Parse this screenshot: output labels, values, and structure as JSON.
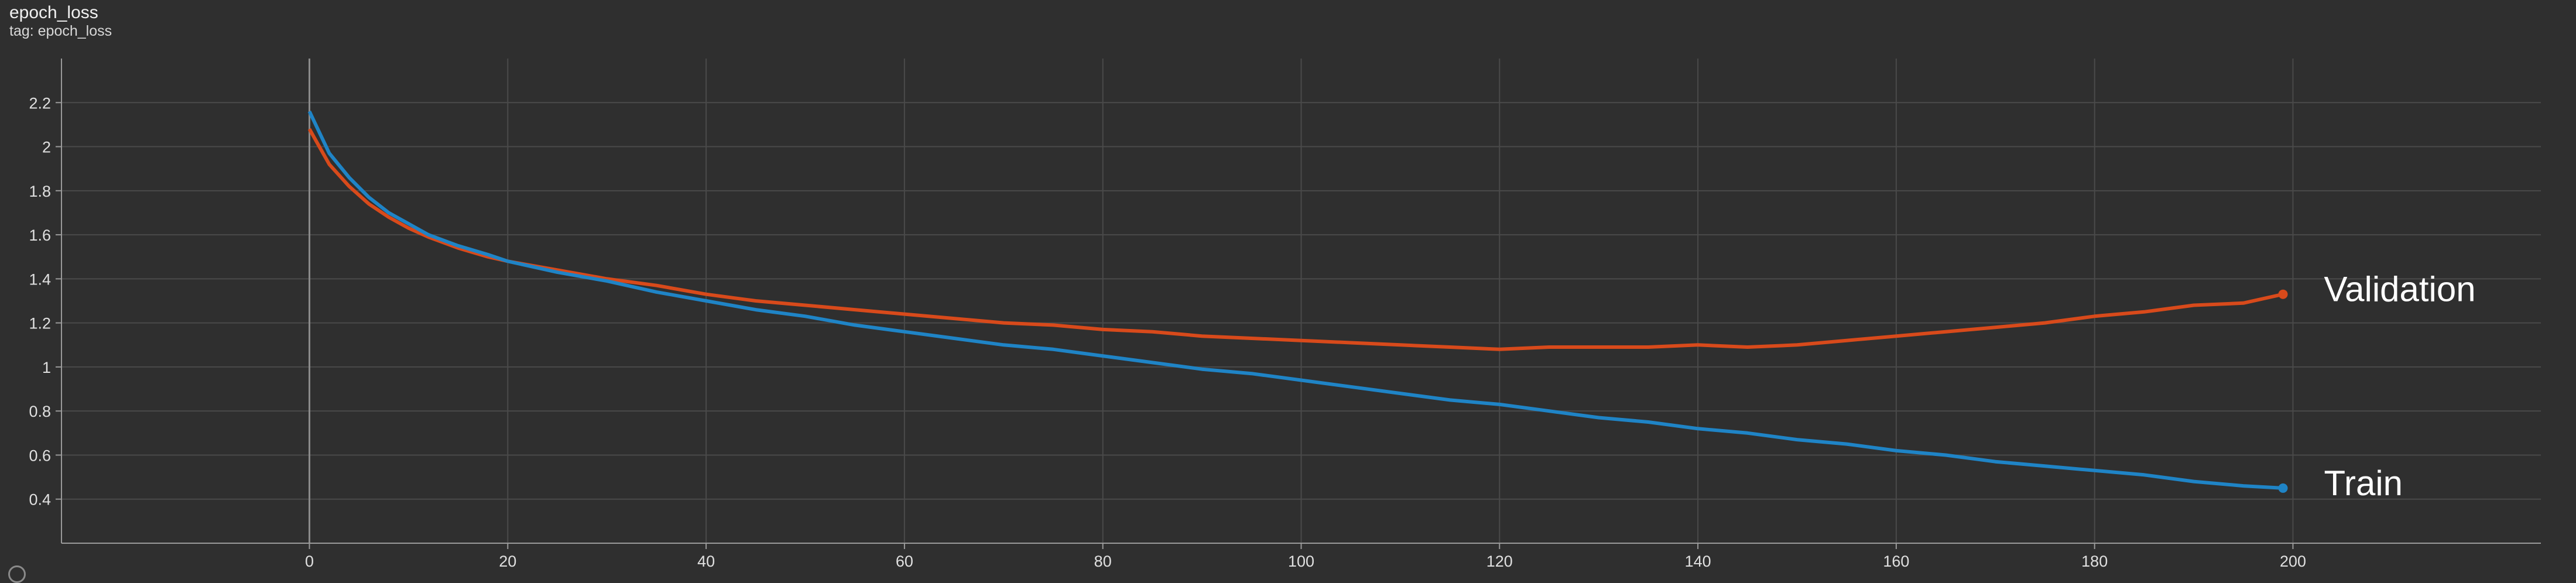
{
  "header": {
    "title": "epoch_loss",
    "subtitle": "tag: epoch_loss"
  },
  "chart_data": {
    "type": "line",
    "title": "epoch_loss",
    "subtitle": "tag: epoch_loss",
    "xlabel": "",
    "ylabel": "",
    "xlim": [
      -25,
      225
    ],
    "ylim": [
      0.2,
      2.4
    ],
    "x_ticks": [
      0,
      20,
      40,
      60,
      80,
      100,
      120,
      140,
      160,
      180,
      200
    ],
    "y_ticks": [
      0.4,
      0.6,
      0.8,
      1,
      1.2,
      1.4,
      1.6,
      1.8,
      2,
      2.2
    ],
    "grid": true,
    "legend": "inline-right",
    "series": [
      {
        "name": "Validation",
        "color": "#d84a1b",
        "x": [
          0,
          2,
          4,
          6,
          8,
          10,
          12,
          15,
          18,
          20,
          25,
          30,
          35,
          40,
          45,
          50,
          55,
          60,
          65,
          70,
          75,
          80,
          85,
          90,
          95,
          100,
          105,
          110,
          115,
          120,
          125,
          130,
          135,
          140,
          145,
          150,
          155,
          160,
          165,
          170,
          175,
          180,
          185,
          190,
          195,
          199
        ],
        "y": [
          2.08,
          1.92,
          1.82,
          1.74,
          1.68,
          1.63,
          1.59,
          1.54,
          1.5,
          1.48,
          1.44,
          1.4,
          1.37,
          1.33,
          1.3,
          1.28,
          1.26,
          1.24,
          1.22,
          1.2,
          1.19,
          1.17,
          1.16,
          1.14,
          1.13,
          1.12,
          1.11,
          1.1,
          1.09,
          1.08,
          1.09,
          1.09,
          1.09,
          1.1,
          1.09,
          1.1,
          1.12,
          1.14,
          1.16,
          1.18,
          1.2,
          1.23,
          1.25,
          1.28,
          1.29,
          1.33
        ]
      },
      {
        "name": "Train",
        "color": "#1f84c6",
        "x": [
          0,
          2,
          4,
          6,
          8,
          10,
          12,
          15,
          18,
          20,
          25,
          30,
          35,
          40,
          45,
          50,
          55,
          60,
          65,
          70,
          75,
          80,
          85,
          90,
          95,
          100,
          105,
          110,
          115,
          120,
          125,
          130,
          135,
          140,
          145,
          150,
          155,
          160,
          165,
          170,
          175,
          180,
          185,
          190,
          195,
          199
        ],
        "y": [
          2.16,
          1.97,
          1.86,
          1.77,
          1.7,
          1.65,
          1.6,
          1.55,
          1.51,
          1.48,
          1.43,
          1.39,
          1.34,
          1.3,
          1.26,
          1.23,
          1.19,
          1.16,
          1.13,
          1.1,
          1.08,
          1.05,
          1.02,
          0.99,
          0.97,
          0.94,
          0.91,
          0.88,
          0.85,
          0.83,
          0.8,
          0.77,
          0.75,
          0.72,
          0.7,
          0.67,
          0.65,
          0.62,
          0.6,
          0.57,
          0.55,
          0.53,
          0.51,
          0.48,
          0.46,
          0.45
        ]
      }
    ]
  }
}
